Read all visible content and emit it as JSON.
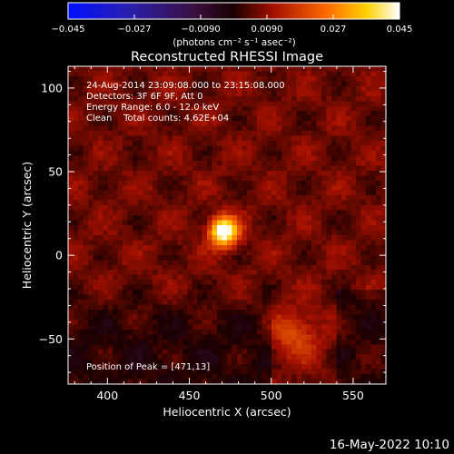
{
  "chart_data": {
    "type": "heatmap",
    "title": "Reconstructed RHESSI Image",
    "xlabel": "Heliocentric X (arcsec)",
    "ylabel": "Heliocentric Y (arcsec)",
    "xlim": [
      376,
      570
    ],
    "ylim": [
      -77,
      113
    ],
    "x_ticks": [
      "400",
      "450",
      "500",
      "550"
    ],
    "x_tick_values": [
      400,
      450,
      500,
      550
    ],
    "y_ticks": [
      "100",
      "50",
      "0",
      "−50"
    ],
    "y_tick_values": [
      100,
      50,
      0,
      -50
    ],
    "colorbar": {
      "range": [
        -0.045,
        0.045
      ],
      "tick_labels": [
        "−0.045",
        "−0.027",
        "−0.0090",
        "0.0090",
        "0.027",
        "0.045"
      ],
      "tick_values": [
        -0.045,
        -0.027,
        -0.009,
        0.009,
        0.027,
        0.045
      ],
      "units": "(photons cm⁻² s⁻¹ asec⁻²)"
    },
    "annotations": [
      "24-Aug-2014 23:09:08.000 to 23:15:08.000",
      "Detectors: 3F 6F 9F, Att 0",
      "Energy Range: 6.0 - 12.0 keV",
      "Clean    Total counts: 4.62E+04"
    ],
    "peak_label": "Position of Peak = [471,13]",
    "peak": [
      471,
      13
    ],
    "sources": [
      {
        "x": 471,
        "y": 14,
        "sigma": 6,
        "peak": 0.045
      },
      {
        "x": 515,
        "y": -47,
        "sigma": 10,
        "peak": 0.013
      }
    ]
  },
  "timestamp": "16-May-2022 10:10"
}
